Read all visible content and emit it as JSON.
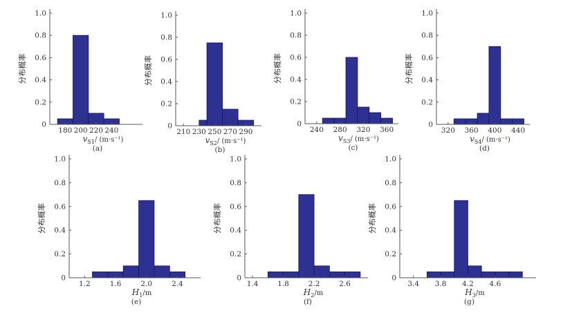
{
  "figure": {
    "ylabel": "分布概率",
    "bar_color": "#2e3192",
    "bar_edge": "#14175e",
    "axis_color": "#555555"
  },
  "chart_data": [
    {
      "type": "bar",
      "panel": "(a)",
      "xlabel_main": "v",
      "xlabel_sub": "S1",
      "xlabel_unit": "/ (m·s⁻¹)",
      "ylabel": "分布概率",
      "xlim": [
        160,
        280
      ],
      "ylim": [
        0,
        1.0
      ],
      "yticks": [
        "0",
        "0.2",
        "0.4",
        "0.6",
        "0.8",
        "1.0"
      ],
      "xticks": [
        180,
        200,
        220,
        240
      ],
      "bins": [
        {
          "x0": 170,
          "x1": 190,
          "value": 0.05
        },
        {
          "x0": 190,
          "x1": 210,
          "value": 0.8
        },
        {
          "x0": 210,
          "x1": 230,
          "value": 0.1
        },
        {
          "x0": 230,
          "x1": 250,
          "value": 0.05
        }
      ]
    },
    {
      "type": "bar",
      "panel": "(b)",
      "xlabel_main": "v",
      "xlabel_sub": "S2",
      "xlabel_unit": "/ (m·s⁻¹)",
      "ylabel": "分布概率",
      "xlim": [
        200,
        310
      ],
      "ylim": [
        0,
        1.0
      ],
      "yticks": [
        "0",
        "0.2",
        "0.4",
        "0.6",
        "0.8",
        "1.0"
      ],
      "xticks": [
        210,
        230,
        250,
        270,
        290
      ],
      "bins": [
        {
          "x0": 230,
          "x1": 240,
          "value": 0.05
        },
        {
          "x0": 240,
          "x1": 260,
          "value": 0.75
        },
        {
          "x0": 260,
          "x1": 280,
          "value": 0.15
        },
        {
          "x0": 280,
          "x1": 300,
          "value": 0.05
        }
      ]
    },
    {
      "type": "bar",
      "panel": "(c)",
      "xlabel_main": "v",
      "xlabel_sub": "S3",
      "xlabel_unit": "/ (m·s⁻¹)",
      "ylabel": "分布概率",
      "xlim": [
        220,
        380
      ],
      "ylim": [
        0,
        1.0
      ],
      "yticks": [
        "0",
        "0.2",
        "0.4",
        "0.6",
        "0.8",
        "1.0"
      ],
      "xticks": [
        240,
        280,
        320,
        360
      ],
      "bins": [
        {
          "x0": 250,
          "x1": 270,
          "value": 0.05
        },
        {
          "x0": 270,
          "x1": 290,
          "value": 0.05
        },
        {
          "x0": 290,
          "x1": 310,
          "value": 0.6
        },
        {
          "x0": 310,
          "x1": 330,
          "value": 0.15
        },
        {
          "x0": 330,
          "x1": 350,
          "value": 0.1
        },
        {
          "x0": 350,
          "x1": 370,
          "value": 0.05
        }
      ]
    },
    {
      "type": "bar",
      "panel": "(d)",
      "xlabel_main": "v",
      "xlabel_sub": "S4",
      "xlabel_unit": "/ (m·s⁻¹)",
      "ylabel": "分布概率",
      "xlim": [
        300,
        460
      ],
      "ylim": [
        0,
        1.0
      ],
      "yticks": [
        "0",
        "0.2",
        "0.4",
        "0.6",
        "0.8",
        "1.0"
      ],
      "xticks": [
        320,
        360,
        400,
        440
      ],
      "bins": [
        {
          "x0": 330,
          "x1": 350,
          "value": 0.05
        },
        {
          "x0": 350,
          "x1": 370,
          "value": 0.05
        },
        {
          "x0": 370,
          "x1": 390,
          "value": 0.1
        },
        {
          "x0": 390,
          "x1": 410,
          "value": 0.7
        },
        {
          "x0": 410,
          "x1": 430,
          "value": 0.05
        },
        {
          "x0": 430,
          "x1": 450,
          "value": 0.05
        }
      ]
    },
    {
      "type": "bar",
      "panel": "(e)",
      "xlabel_main": "H",
      "xlabel_sub": "1",
      "xlabel_unit": "/m",
      "ylabel": "分布概率",
      "xlim": [
        1.0,
        2.7
      ],
      "ylim": [
        0,
        1.0
      ],
      "yticks": [
        "0",
        "0.2",
        "0.4",
        "0.6",
        "0.8",
        "1.0"
      ],
      "xticks": [
        "1.2",
        "1.6",
        "2.0",
        "2.4"
      ],
      "bins": [
        {
          "x0": 1.3,
          "x1": 1.5,
          "value": 0.05
        },
        {
          "x0": 1.5,
          "x1": 1.7,
          "value": 0.05
        },
        {
          "x0": 1.7,
          "x1": 1.9,
          "value": 0.1
        },
        {
          "x0": 1.9,
          "x1": 2.1,
          "value": 0.65
        },
        {
          "x0": 2.1,
          "x1": 2.3,
          "value": 0.1
        },
        {
          "x0": 2.3,
          "x1": 2.5,
          "value": 0.05
        }
      ]
    },
    {
      "type": "bar",
      "panel": "(f)",
      "xlabel_main": "H",
      "xlabel_sub": "2",
      "xlabel_unit": "/m",
      "ylabel": "分布概率",
      "xlim": [
        1.3,
        2.9
      ],
      "ylim": [
        0,
        1.0
      ],
      "yticks": [
        "0",
        "0.2",
        "0.4",
        "0.6",
        "0.8",
        "1.0"
      ],
      "xticks": [
        "1.4",
        "1.8",
        "2.2",
        "2.6"
      ],
      "bins": [
        {
          "x0": 1.6,
          "x1": 1.8,
          "value": 0.05
        },
        {
          "x0": 1.8,
          "x1": 2.0,
          "value": 0.05
        },
        {
          "x0": 2.0,
          "x1": 2.2,
          "value": 0.7
        },
        {
          "x0": 2.2,
          "x1": 2.4,
          "value": 0.1
        },
        {
          "x0": 2.4,
          "x1": 2.6,
          "value": 0.05
        },
        {
          "x0": 2.6,
          "x1": 2.8,
          "value": 0.05
        }
      ]
    },
    {
      "type": "bar",
      "panel": "(g)",
      "xlabel_main": "H",
      "xlabel_sub": "3",
      "xlabel_unit": "/m",
      "ylabel": "分布概率",
      "xlim": [
        3.2,
        5.2
      ],
      "ylim": [
        0,
        1.0
      ],
      "yticks": [
        "0",
        "0.2",
        "0.4",
        "0.6",
        "0.8",
        "1.0"
      ],
      "xticks": [
        "3.4",
        "3.8",
        "4.2",
        "4.6"
      ],
      "bins": [
        {
          "x0": 3.6,
          "x1": 3.8,
          "value": 0.05
        },
        {
          "x0": 3.8,
          "x1": 4.0,
          "value": 0.05
        },
        {
          "x0": 4.0,
          "x1": 4.2,
          "value": 0.65
        },
        {
          "x0": 4.2,
          "x1": 4.4,
          "value": 0.1
        },
        {
          "x0": 4.4,
          "x1": 4.6,
          "value": 0.05
        },
        {
          "x0": 4.6,
          "x1": 4.8,
          "value": 0.05
        },
        {
          "x0": 4.8,
          "x1": 5.0,
          "value": 0.05
        }
      ]
    }
  ]
}
